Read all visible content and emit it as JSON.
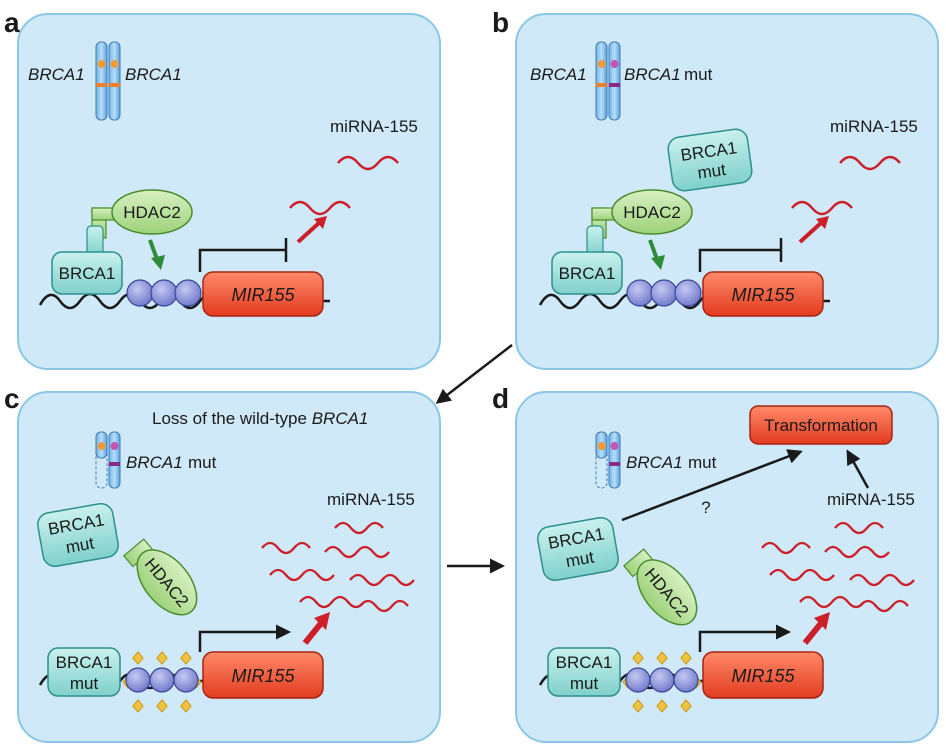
{
  "panels": {
    "a": {
      "label": "a",
      "gene_left": "BRCA1",
      "gene_right": "BRCA1",
      "mirna": "miRNA-155",
      "brca1": "BRCA1",
      "hdac2": "HDAC2",
      "mir155": "MIR155"
    },
    "b": {
      "label": "b",
      "gene_left": "BRCA1",
      "gene_right": "BRCA1",
      "gene_right_suffix": "mut",
      "mirna": "miRNA-155",
      "brca1_mut_1": "BRCA1",
      "brca1_mut_2": "mut",
      "brca1": "BRCA1",
      "hdac2": "HDAC2",
      "mir155": "MIR155"
    },
    "c": {
      "label": "c",
      "title_prefix": "Loss of the wild-type ",
      "title_gene": "BRCA1",
      "gene": "BRCA1",
      "gene_suffix": "mut",
      "mirna": "miRNA-155",
      "brca1_mut_1": "BRCA1",
      "brca1_mut_2": "mut",
      "hdac2": "HDAC2",
      "bound_1": "BRCA1",
      "bound_2": "mut",
      "mir155": "MIR155"
    },
    "d": {
      "label": "d",
      "gene": "BRCA1",
      "gene_suffix": "mut",
      "transformation": "Transformation",
      "question": "?",
      "mirna": "miRNA-155",
      "brca1_mut_1": "BRCA1",
      "brca1_mut_2": "mut",
      "hdac2": "HDAC2",
      "bound_1": "BRCA1",
      "bound_2": "mut",
      "mir155": "MIR155"
    }
  },
  "colors": {
    "panel_fill": "#cfe9f8",
    "panel_stroke": "#8cc6e6",
    "brca1_fill": "#9ee0dc",
    "hdac2_fill": "#b9e29a",
    "mir155_fill": "#f0532f",
    "nucleosome_fill": "#8e96d8",
    "mirna_red": "#cc1f2a",
    "green_arrow": "#2e8b3a",
    "acetyl": "#f5c542"
  }
}
